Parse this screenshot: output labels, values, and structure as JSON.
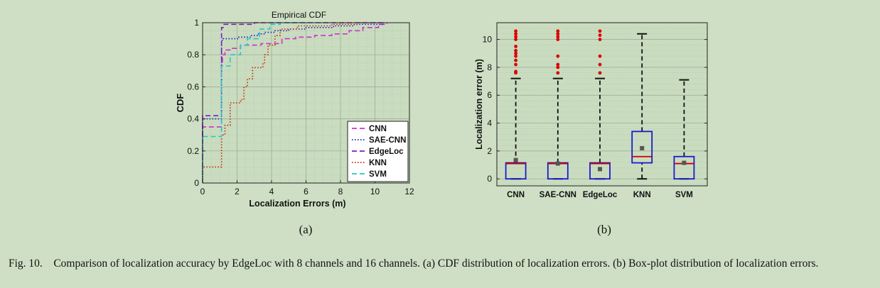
{
  "figure": {
    "caption_label": "Fig. 10.",
    "caption_text": "Comparison of localization accuracy by EdgeLoc with 8 channels and 16 channels. (a) CDF distribution of localization errors. (b) Box-plot distribution of localization errors.",
    "sub_a_label": "(a)",
    "sub_b_label": "(b)"
  },
  "chart_data": [
    {
      "type": "line",
      "title": "Empirical CDF",
      "xlabel": "Localization Errors (m)",
      "ylabel": "CDF",
      "xlim": [
        0,
        12
      ],
      "ylim": [
        0,
        1
      ],
      "xticks": [
        0,
        2,
        4,
        6,
        8,
        10,
        12
      ],
      "yticks": [
        0,
        0.2,
        0.4,
        0.6,
        0.8,
        1
      ],
      "ytick_labels": [
        "0",
        "0.2",
        "0.4",
        "0.6",
        "0.8",
        "1"
      ],
      "grid": true,
      "legend_position": "bottom-right",
      "series": [
        {
          "name": "CNN",
          "color": "#cc33cc",
          "style": "dashed",
          "points": [
            [
              0,
              0
            ],
            [
              0,
              0.35
            ],
            [
              1.1,
              0.35
            ],
            [
              1.1,
              0.75
            ],
            [
              1.15,
              0.75
            ],
            [
              1.15,
              0.8
            ],
            [
              1.3,
              0.8
            ],
            [
              1.3,
              0.83
            ],
            [
              1.6,
              0.83
            ],
            [
              1.6,
              0.84
            ],
            [
              2.2,
              0.84
            ],
            [
              2.2,
              0.86
            ],
            [
              3.4,
              0.86
            ],
            [
              3.4,
              0.87
            ],
            [
              4.6,
              0.87
            ],
            [
              4.6,
              0.9
            ],
            [
              5.4,
              0.9
            ],
            [
              5.4,
              0.91
            ],
            [
              6.5,
              0.91
            ],
            [
              6.5,
              0.92
            ],
            [
              7.5,
              0.92
            ],
            [
              7.5,
              0.93
            ],
            [
              8.5,
              0.93
            ],
            [
              8.5,
              0.95
            ],
            [
              9.3,
              0.95
            ],
            [
              9.3,
              0.97
            ],
            [
              10.2,
              0.97
            ],
            [
              10.2,
              0.99
            ],
            [
              10.7,
              0.99
            ],
            [
              10.7,
              1
            ]
          ]
        },
        {
          "name": "SAE-CNN",
          "color": "#1a1acc",
          "style": "dotted",
          "points": [
            [
              0,
              0
            ],
            [
              0,
              0.4
            ],
            [
              1.1,
              0.4
            ],
            [
              1.1,
              0.89
            ],
            [
              1.2,
              0.89
            ],
            [
              1.2,
              0.9
            ],
            [
              2.1,
              0.9
            ],
            [
              2.1,
              0.91
            ],
            [
              2.8,
              0.91
            ],
            [
              2.8,
              0.92
            ],
            [
              3.2,
              0.92
            ],
            [
              3.2,
              0.93
            ],
            [
              3.6,
              0.93
            ],
            [
              3.6,
              0.94
            ],
            [
              4.2,
              0.94
            ],
            [
              4.2,
              0.95
            ],
            [
              5.0,
              0.95
            ],
            [
              5.0,
              0.96
            ],
            [
              6.0,
              0.96
            ],
            [
              6.0,
              0.97
            ],
            [
              7.6,
              0.97
            ],
            [
              7.6,
              0.98
            ],
            [
              8.8,
              0.98
            ],
            [
              8.8,
              0.99
            ],
            [
              10.5,
              0.99
            ],
            [
              10.5,
              1
            ]
          ]
        },
        {
          "name": "EdgeLoc",
          "color": "#7a1fbf",
          "style": "dashed",
          "points": [
            [
              0,
              0
            ],
            [
              0,
              0.42
            ],
            [
              1.1,
              0.42
            ],
            [
              1.1,
              0.97
            ],
            [
              1.2,
              0.97
            ],
            [
              1.2,
              0.99
            ],
            [
              3.0,
              0.99
            ],
            [
              3.0,
              1
            ],
            [
              10.6,
              1
            ]
          ]
        },
        {
          "name": "KNN",
          "color": "#cc2200",
          "style": "dotted",
          "points": [
            [
              0,
              0
            ],
            [
              0,
              0.1
            ],
            [
              1.1,
              0.1
            ],
            [
              1.1,
              0.3
            ],
            [
              1.3,
              0.3
            ],
            [
              1.3,
              0.36
            ],
            [
              1.6,
              0.36
            ],
            [
              1.6,
              0.5
            ],
            [
              2.2,
              0.5
            ],
            [
              2.2,
              0.52
            ],
            [
              2.4,
              0.52
            ],
            [
              2.4,
              0.6
            ],
            [
              2.6,
              0.6
            ],
            [
              2.6,
              0.65
            ],
            [
              2.9,
              0.65
            ],
            [
              2.9,
              0.72
            ],
            [
              3.5,
              0.72
            ],
            [
              3.5,
              0.75
            ],
            [
              3.6,
              0.75
            ],
            [
              3.6,
              0.8
            ],
            [
              3.8,
              0.8
            ],
            [
              3.8,
              0.86
            ],
            [
              4.2,
              0.86
            ],
            [
              4.2,
              0.92
            ],
            [
              4.5,
              0.92
            ],
            [
              4.5,
              0.96
            ],
            [
              5.5,
              0.96
            ],
            [
              5.5,
              0.98
            ],
            [
              7.5,
              0.98
            ],
            [
              7.5,
              0.99
            ],
            [
              9.0,
              0.99
            ],
            [
              9.0,
              1
            ],
            [
              10.5,
              1
            ]
          ]
        },
        {
          "name": "SVM",
          "color": "#22c7c7",
          "style": "dashed",
          "points": [
            [
              0,
              0
            ],
            [
              0,
              0.29
            ],
            [
              1.1,
              0.29
            ],
            [
              1.1,
              0.73
            ],
            [
              1.6,
              0.73
            ],
            [
              1.6,
              0.8
            ],
            [
              2.2,
              0.8
            ],
            [
              2.2,
              0.86
            ],
            [
              2.6,
              0.86
            ],
            [
              2.6,
              0.9
            ],
            [
              3.3,
              0.9
            ],
            [
              3.3,
              0.96
            ],
            [
              3.9,
              0.96
            ],
            [
              3.9,
              0.99
            ],
            [
              4.5,
              0.99
            ],
            [
              4.5,
              1
            ],
            [
              7.2,
              1
            ]
          ]
        }
      ]
    },
    {
      "type": "box",
      "ylabel": "Localization error (m)",
      "ylim": [
        -0.5,
        11.2
      ],
      "yticks": [
        0,
        2,
        4,
        6,
        8,
        10
      ],
      "categories": [
        "CNN",
        "SAE-CNN",
        "EdgeLoc",
        "KNN",
        "SVM"
      ],
      "box_color": "#1a1acc",
      "median_color": "#cc0000",
      "mean_color": "#555555",
      "outlier_color": "#dd0000",
      "boxes": [
        {
          "whisker_low": 0,
          "q1": 0,
          "median": 1.1,
          "q3": 1.15,
          "whisker_high": 7.2,
          "mean": 1.35,
          "outliers": [
            7.6,
            7.7,
            8.2,
            8.5,
            8.8,
            9.0,
            9.2,
            9.5,
            10.0,
            10.2,
            10.4,
            10.6
          ]
        },
        {
          "whisker_low": 0,
          "q1": 0,
          "median": 1.1,
          "q3": 1.15,
          "whisker_high": 7.2,
          "mean": 1.1,
          "outliers": [
            7.6,
            8.0,
            8.2,
            8.8,
            10.0,
            10.2,
            10.4,
            10.6
          ]
        },
        {
          "whisker_low": 0,
          "q1": 0,
          "median": 1.1,
          "q3": 1.15,
          "whisker_high": 7.2,
          "mean": 0.7,
          "outliers": [
            7.6,
            8.2,
            8.8,
            10.0,
            10.3,
            10.6
          ]
        },
        {
          "whisker_low": 0,
          "q1": 1.15,
          "median": 1.6,
          "q3": 3.4,
          "whisker_high": 10.4,
          "mean": 2.2,
          "outliers": []
        },
        {
          "whisker_low": 0,
          "q1": 0,
          "median": 1.1,
          "q3": 1.6,
          "whisker_high": 7.1,
          "mean": 1.15,
          "outliers": []
        }
      ]
    }
  ]
}
